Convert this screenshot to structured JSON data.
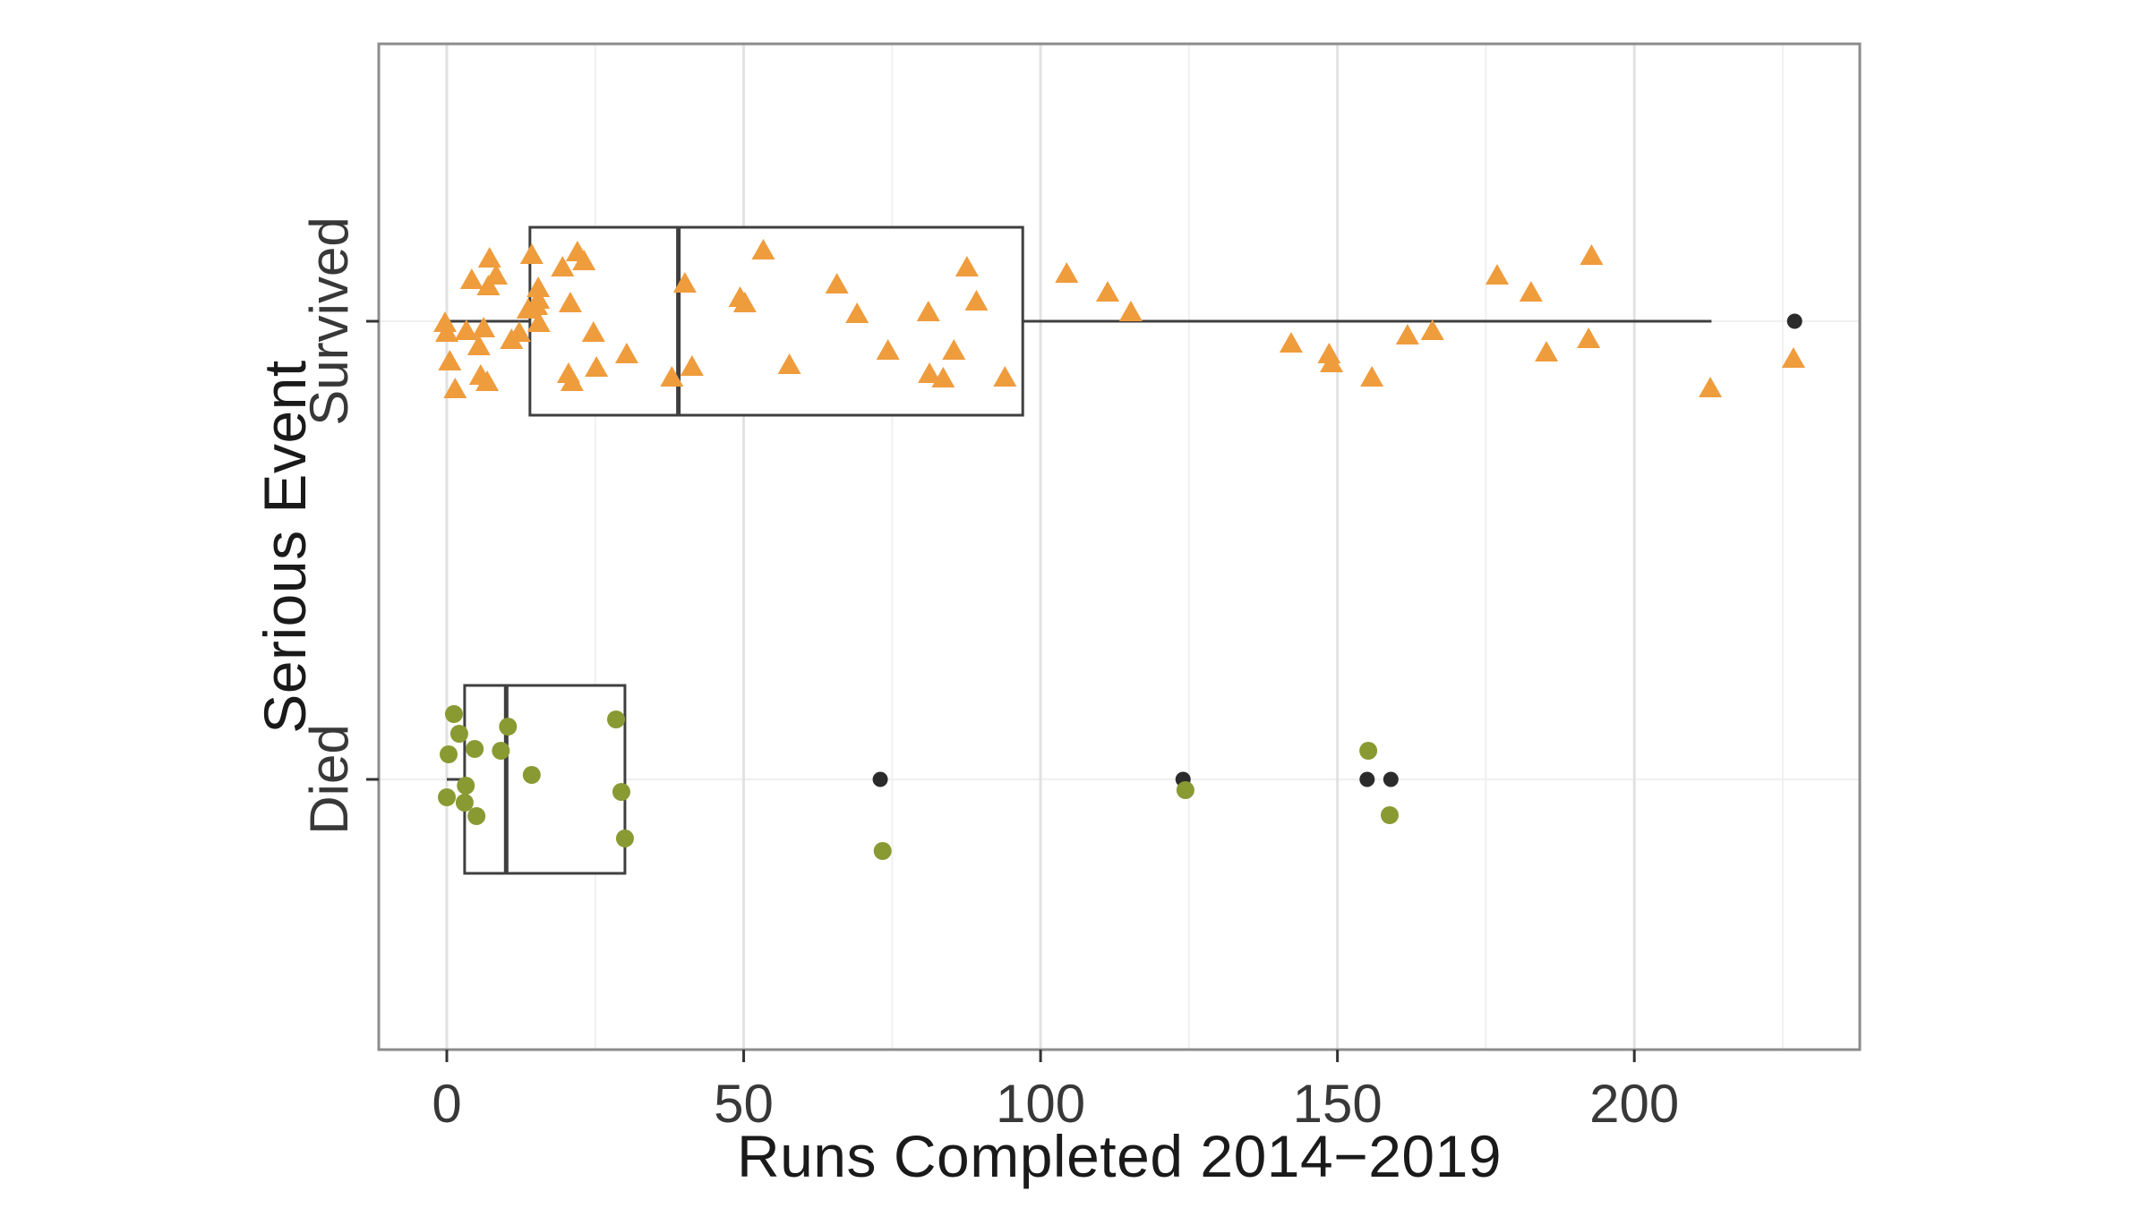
{
  "chart_data": {
    "type": "boxplot",
    "subtype": "horizontal boxplot with jittered raw data points",
    "title": "",
    "xlabel": "Runs Completed 2014−2019",
    "ylabel": "Serious Event",
    "xlim": [
      -11.5,
      238
    ],
    "x_major_ticks": [
      0,
      50,
      100,
      150,
      200
    ],
    "x_minor_ticks": [
      25,
      75,
      125,
      175,
      225
    ],
    "grid": "major and minor vertical gridlines, faint horizontal line at each category",
    "legend": "none",
    "categories": [
      "Survived",
      "Died"
    ],
    "groups": [
      {
        "label": "Survived",
        "marker": "triangle",
        "color": "#EF9C3D",
        "box": {
          "whisker_low": 0,
          "q1": 14,
          "median": 39,
          "q3": 97,
          "whisker_high": 213,
          "outliers": [
            227
          ]
        },
        "points": [
          [
            7.2,
            -69
          ],
          [
            4.2,
            -45
          ],
          [
            8.3,
            -50
          ],
          [
            7.0,
            -38
          ],
          [
            14.3,
            -73
          ],
          [
            19.5,
            -59
          ],
          [
            22.0,
            -76
          ],
          [
            23.1,
            -66
          ],
          [
            15.4,
            -36
          ],
          [
            15.4,
            -23
          ],
          [
            15.1,
            -16
          ],
          [
            13.7,
            -12
          ],
          [
            20.8,
            -19
          ],
          [
            -0.3,
            3
          ],
          [
            0,
            14
          ],
          [
            3.3,
            12
          ],
          [
            6.2,
            9
          ],
          [
            5.4,
            29
          ],
          [
            10.9,
            22
          ],
          [
            12.2,
            14
          ],
          [
            15.5,
            3
          ],
          [
            0.5,
            46
          ],
          [
            5.7,
            62
          ],
          [
            6.8,
            69
          ],
          [
            1.4,
            77
          ],
          [
            20.5,
            60
          ],
          [
            21.1,
            69
          ],
          [
            25.2,
            53
          ],
          [
            30.3,
            38
          ],
          [
            24.7,
            14
          ],
          [
            37.9,
            64
          ],
          [
            40.1,
            -41
          ],
          [
            41.3,
            52
          ],
          [
            50.2,
            -19
          ],
          [
            49.4,
            -25
          ],
          [
            53.3,
            -78
          ],
          [
            57.7,
            50
          ],
          [
            65.7,
            -40
          ],
          [
            69.1,
            -7
          ],
          [
            74.3,
            34
          ],
          [
            81.1,
            -9
          ],
          [
            81.3,
            60
          ],
          [
            83.6,
            65
          ],
          [
            85.4,
            34
          ],
          [
            87.6,
            -59
          ],
          [
            89.2,
            -21
          ],
          [
            94.0,
            64
          ],
          [
            104.4,
            -52
          ],
          [
            111.3,
            -31
          ],
          [
            115.2,
            -9
          ],
          [
            142.2,
            26
          ],
          [
            148.6,
            38
          ],
          [
            149.0,
            48
          ],
          [
            155.8,
            64
          ],
          [
            161.8,
            17
          ],
          [
            166.0,
            12
          ],
          [
            176.9,
            -50
          ],
          [
            182.6,
            -31
          ],
          [
            185.2,
            36
          ],
          [
            192.3,
            21
          ],
          [
            192.8,
            -72
          ],
          [
            212.8,
            76
          ],
          [
            226.8,
            43
          ]
        ]
      },
      {
        "label": "Died",
        "marker": "circle",
        "color": "#8A9A33",
        "box": {
          "whisker_low": 0,
          "q1": 3,
          "median": 10,
          "q3": 30,
          "whisker_high": 30,
          "outliers": [
            73,
            124,
            155,
            159
          ]
        },
        "points": [
          [
            1.2,
            -73
          ],
          [
            2.1,
            -51
          ],
          [
            4.7,
            -34
          ],
          [
            0.3,
            -28
          ],
          [
            10.3,
            -59
          ],
          [
            9.1,
            -32
          ],
          [
            28.5,
            -67
          ],
          [
            14.3,
            -5
          ],
          [
            3.2,
            7
          ],
          [
            0.0,
            20
          ],
          [
            3.0,
            26
          ],
          [
            5.0,
            41
          ],
          [
            29.4,
            14
          ],
          [
            30.0,
            66
          ],
          [
            73.4,
            80
          ],
          [
            124.4,
            12
          ],
          [
            155.2,
            -32
          ],
          [
            158.8,
            40
          ]
        ]
      }
    ],
    "colors": {
      "survived_marker": "#EF9C3D",
      "died_marker": "#8A9A33",
      "outlier_marker": "#2B2B2B",
      "box_stroke": "#3F3F3F",
      "panel_border": "#8C8C8C",
      "grid_major": "#E2E2E2",
      "grid_minor": "#F0F0F0",
      "tick_text": "#383838",
      "title_text": "#1A1A1A"
    }
  }
}
